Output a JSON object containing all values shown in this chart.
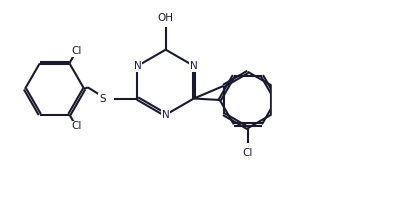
{
  "bg_color": "#ffffff",
  "line_color": "#1a1a2e",
  "nitrogen_color": "#1a1a6e",
  "line_width": 1.5,
  "dbo": 0.018,
  "figsize": [
    3.95,
    1.97
  ],
  "dpi": 100,
  "xlim": [
    -1.5,
    3.8
  ],
  "ylim": [
    -1.3,
    1.3
  ]
}
